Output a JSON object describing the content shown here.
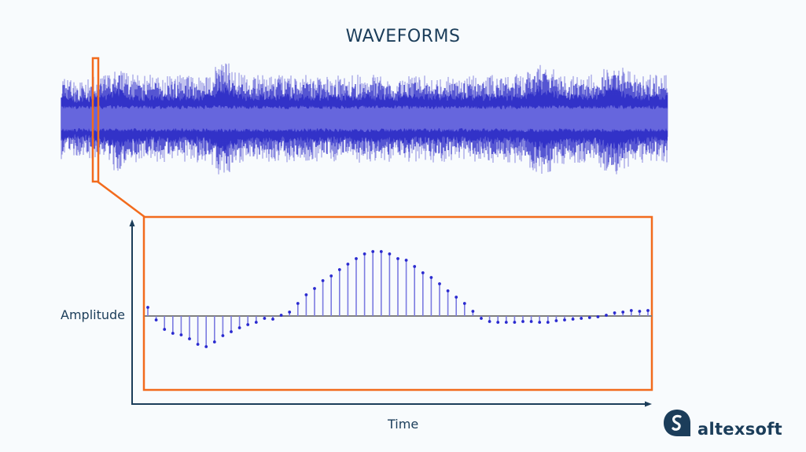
{
  "title": "WAVEFORMS",
  "axes": {
    "ylabel": "Amplitude",
    "xlabel": "Time"
  },
  "brand": {
    "name": "altexsoft"
  },
  "colors": {
    "waveform_dark": "#3333c8",
    "waveform_light": "#6666dd",
    "waveform_spike": "#8a8ae0",
    "highlight": "#f26b1d",
    "axis": "#1b3d5a",
    "stem": "#7b7be0",
    "baseline": "#808080"
  },
  "chart_data": {
    "type": "stem",
    "title": "WAVEFORMS",
    "xlabel": "Time",
    "ylabel": "Amplitude",
    "description": "Zoomed-in segment of an audio waveform shown as discrete samples (stem plot)",
    "grid": false,
    "x": [
      1,
      2,
      3,
      4,
      5,
      6,
      7,
      8,
      9,
      10,
      11,
      12,
      13,
      14,
      15,
      16,
      17,
      18,
      19,
      20,
      21,
      22,
      23,
      24,
      25,
      26,
      27,
      28,
      29,
      30,
      31,
      32,
      33,
      34,
      35,
      36,
      37,
      38,
      39,
      40,
      41,
      42,
      43,
      44,
      45,
      46,
      47,
      48,
      49,
      50,
      51,
      52,
      53,
      54,
      55,
      56,
      57,
      58,
      59,
      60,
      61
    ],
    "values": [
      11,
      -5,
      -17,
      -22,
      -24,
      -29,
      -36,
      -39,
      -33,
      -25,
      -20,
      -15,
      -11,
      -8,
      -3,
      -4,
      1,
      5,
      16,
      27,
      35,
      45,
      51,
      59,
      66,
      73,
      79,
      82,
      82,
      79,
      73,
      71,
      63,
      55,
      49,
      41,
      32,
      24,
      16,
      6,
      -3,
      -7,
      -8,
      -8,
      -8,
      -7,
      -7,
      -8,
      -8,
      -6,
      -5,
      -4,
      -3,
      -2,
      -1,
      1,
      4,
      5,
      7,
      6,
      7
    ]
  }
}
